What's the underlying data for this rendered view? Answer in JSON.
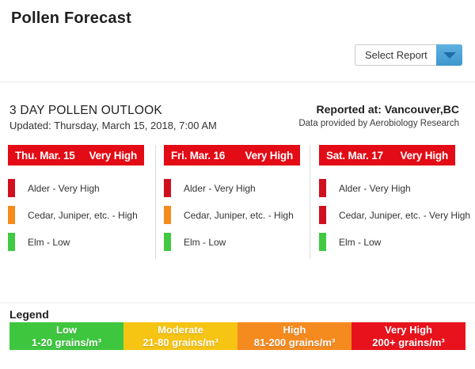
{
  "page": {
    "title": "Pollen Forecast"
  },
  "report_selector": {
    "value": "Select Report",
    "button_color": "#4DA3D6",
    "arrow_color": "#1F6EA6"
  },
  "outlook": {
    "heading": "3 DAY POLLEN OUTLOOK",
    "updated": "Updated: Thursday, March 15, 2018, 7:00 AM",
    "reported_at": "Reported at: Vancouver,BC",
    "data_source": "Data provided by Aerobiology Research"
  },
  "colors": {
    "day_header_red": "#E30B15",
    "very_high": "#D0101E",
    "high": "#F58A1D",
    "low": "#41C941"
  },
  "days": [
    {
      "date": "Thu. Mar. 15",
      "overall_level": "Very High",
      "header_color": "#E30B15",
      "items": [
        {
          "label": "Alder - Very High",
          "color": "#D0101E"
        },
        {
          "label": "Cedar, Juniper, etc. - High",
          "color": "#F58A1D"
        },
        {
          "label": "Elm - Low",
          "color": "#41C941"
        }
      ]
    },
    {
      "date": "Fri. Mar. 16",
      "overall_level": "Very High",
      "header_color": "#E30B15",
      "items": [
        {
          "label": "Alder - Very High",
          "color": "#D0101E"
        },
        {
          "label": "Cedar, Juniper, etc. - High",
          "color": "#F58A1D"
        },
        {
          "label": "Elm - Low",
          "color": "#41C941"
        }
      ]
    },
    {
      "date": "Sat. Mar. 17",
      "overall_level": "Very High",
      "header_color": "#E30B15",
      "items": [
        {
          "label": "Alder - Very High",
          "color": "#D0101E"
        },
        {
          "label": "Cedar, Juniper, etc. - Very High",
          "color": "#D0101E"
        },
        {
          "label": "Elm - Low",
          "color": "#41C941"
        }
      ]
    }
  ],
  "legend": {
    "heading": "Legend",
    "bands": [
      {
        "label": "Low",
        "range": "1-20 grains/m³",
        "color": "#3FC63F"
      },
      {
        "label": "Moderate",
        "range": "21-80 grains/m³",
        "color": "#F6C413"
      },
      {
        "label": "High",
        "range": "81-200 grains/m³",
        "color": "#F58A1F"
      },
      {
        "label": "Very High",
        "range": "200+ grains/m³",
        "color": "#E8121C"
      }
    ]
  }
}
